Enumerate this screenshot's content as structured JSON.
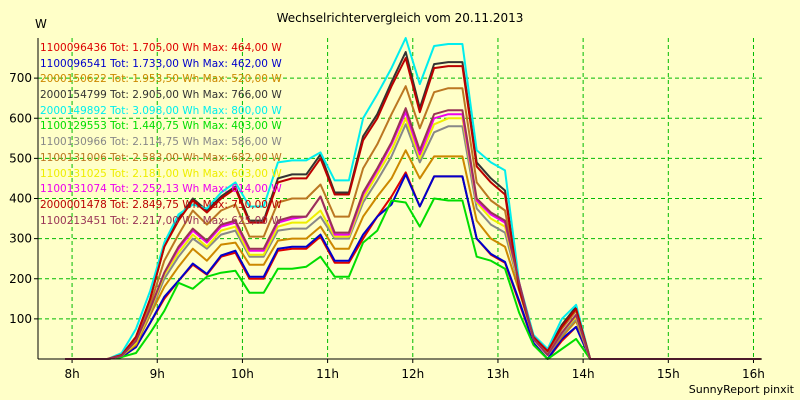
{
  "chart_data": {
    "type": "line",
    "title": "Wechselrichtervergleich vom 20.11.2013",
    "ylabel": "W",
    "xlabel": "",
    "footer": "SunnyReport pinxit",
    "grid": true,
    "xlim": [
      7.6,
      16.1
    ],
    "ylim": [
      0,
      800
    ],
    "x_tick_values": [
      8,
      9,
      10,
      11,
      12,
      13,
      14,
      15,
      16
    ],
    "x_tick_labels": [
      "8h",
      "9h",
      "10h",
      "11h",
      "12h",
      "13h",
      "14h",
      "15h",
      "16h"
    ],
    "y_tick_values": [
      100,
      200,
      300,
      400,
      500,
      600,
      700
    ],
    "y_tick_labels": [
      "100",
      "200",
      "300",
      "400",
      "500",
      "600",
      "700"
    ],
    "x": [
      7.917,
      8.083,
      8.25,
      8.417,
      8.583,
      8.75,
      8.917,
      9.083,
      9.25,
      9.417,
      9.583,
      9.75,
      9.917,
      10.083,
      10.25,
      10.417,
      10.583,
      10.75,
      10.917,
      11.083,
      11.25,
      11.417,
      11.583,
      11.75,
      11.917,
      12.083,
      12.25,
      12.417,
      12.583,
      12.75,
      12.917,
      13.083,
      13.25,
      13.417,
      13.583,
      13.75,
      13.917,
      14.083,
      14.25,
      14.417,
      14.583,
      14.75,
      14.917,
      15.083,
      15.25,
      15.417,
      15.583,
      15.75,
      15.917,
      16.083
    ],
    "series": [
      {
        "name": "1100096436 Tot: 1.705,00 Wh Max: 464,00 W",
        "color": "#dd0000",
        "values": [
          0,
          0,
          0,
          0,
          5,
          30,
          90,
          150,
          195,
          235,
          210,
          255,
          265,
          200,
          200,
          270,
          275,
          275,
          305,
          240,
          240,
          300,
          355,
          405,
          465,
          380,
          455,
          455,
          455,
          300,
          260,
          240,
          140,
          40,
          0,
          45,
          80,
          0,
          0,
          0,
          0,
          0,
          0,
          0,
          0,
          0,
          0,
          0,
          0,
          0
        ]
      },
      {
        "name": "1100096541 Tot: 1.733,00 Wh Max: 462,00 W",
        "color": "#0000cc",
        "values": [
          0,
          0,
          0,
          0,
          5,
          30,
          90,
          155,
          195,
          238,
          212,
          258,
          270,
          205,
          205,
          275,
          280,
          280,
          310,
          245,
          245,
          310,
          355,
          385,
          460,
          380,
          455,
          455,
          455,
          300,
          262,
          242,
          145,
          40,
          0,
          50,
          80,
          0,
          0,
          0,
          0,
          0,
          0,
          0,
          0,
          0,
          0,
          0,
          0,
          0
        ]
      },
      {
        "name": "2000150622 Tot: 1.953,50 Wh Max: 520,00 W",
        "color": "#cc8800",
        "values": [
          0,
          0,
          0,
          0,
          8,
          35,
          110,
          180,
          230,
          275,
          245,
          285,
          290,
          235,
          235,
          295,
          300,
          300,
          330,
          275,
          275,
          355,
          405,
          450,
          520,
          450,
          505,
          505,
          505,
          345,
          300,
          280,
          170,
          50,
          10,
          55,
          95,
          0,
          0,
          0,
          0,
          0,
          0,
          0,
          0,
          0,
          0,
          0,
          0,
          0
        ]
      },
      {
        "name": "2000154799 Tot: 2.905,00 Wh Max: 766,00 W",
        "color": "#333333",
        "values": [
          0,
          0,
          0,
          0,
          10,
          55,
          150,
          280,
          350,
          400,
          370,
          405,
          430,
          345,
          345,
          450,
          460,
          460,
          510,
          415,
          415,
          555,
          610,
          690,
          765,
          625,
          735,
          740,
          740,
          490,
          450,
          420,
          175,
          55,
          20,
          85,
          130,
          0,
          0,
          0,
          0,
          0,
          0,
          0,
          0,
          0,
          0,
          0,
          0,
          0
        ]
      },
      {
        "name": "2000149892 Tot: 3.098,00 Wh Max: 800,00 W",
        "color": "#00eeee",
        "values": [
          0,
          0,
          0,
          0,
          15,
          75,
          170,
          290,
          360,
          385,
          375,
          415,
          440,
          380,
          380,
          490,
          495,
          495,
          515,
          445,
          445,
          600,
          660,
          725,
          800,
          685,
          780,
          785,
          785,
          520,
          490,
          470,
          190,
          60,
          25,
          100,
          135,
          0,
          0,
          0,
          0,
          0,
          0,
          0,
          0,
          0,
          0,
          0,
          0,
          0
        ]
      },
      {
        "name": "1100129553 Tot: 1.440,75 Wh Max: 403,00 W",
        "color": "#00dd00",
        "values": [
          0,
          0,
          0,
          0,
          5,
          15,
          65,
          120,
          190,
          175,
          205,
          215,
          220,
          165,
          165,
          225,
          225,
          230,
          255,
          205,
          205,
          290,
          320,
          395,
          390,
          330,
          400,
          395,
          395,
          255,
          245,
          225,
          115,
          35,
          0,
          25,
          50,
          0,
          0,
          0,
          0,
          0,
          0,
          0,
          0,
          0,
          0,
          0,
          0,
          0
        ]
      },
      {
        "name": "1100130966 Tot: 2.114,75 Wh Max: 586,00 W",
        "color": "#888888",
        "values": [
          0,
          0,
          0,
          0,
          8,
          40,
          115,
          200,
          255,
          300,
          275,
          310,
          320,
          255,
          255,
          320,
          325,
          325,
          355,
          300,
          300,
          390,
          445,
          505,
          585,
          490,
          565,
          580,
          580,
          375,
          335,
          315,
          180,
          50,
          10,
          60,
          100,
          0,
          0,
          0,
          0,
          0,
          0,
          0,
          0,
          0,
          0,
          0,
          0,
          0
        ]
      },
      {
        "name": "1100131006 Tot: 2.583,00 Wh Max: 682,00 W",
        "color": "#bb7722",
        "values": [
          0,
          0,
          0,
          0,
          10,
          50,
          135,
          245,
          310,
          370,
          335,
          370,
          385,
          305,
          305,
          390,
          400,
          400,
          435,
          355,
          355,
          475,
          535,
          610,
          680,
          575,
          665,
          675,
          675,
          440,
          395,
          370,
          180,
          55,
          15,
          75,
          120,
          0,
          0,
          0,
          0,
          0,
          0,
          0,
          0,
          0,
          0,
          0,
          0,
          0
        ]
      },
      {
        "name": "1100131025 Tot: 2.181,00 Wh Max: 603,00 W",
        "color": "#eeee00",
        "values": [
          0,
          0,
          0,
          0,
          8,
          40,
          120,
          210,
          265,
          310,
          280,
          320,
          330,
          260,
          260,
          330,
          340,
          340,
          370,
          305,
          305,
          400,
          460,
          520,
          600,
          500,
          585,
          600,
          600,
          390,
          350,
          330,
          185,
          50,
          10,
          65,
          105,
          0,
          0,
          0,
          0,
          0,
          0,
          0,
          0,
          0,
          0,
          0,
          0,
          0
        ]
      },
      {
        "name": "1100131074 Tot: 2.252,13 Wh Max: 614,00 W",
        "color": "#ee00ee",
        "values": [
          0,
          0,
          0,
          0,
          8,
          45,
          125,
          215,
          275,
          320,
          290,
          330,
          340,
          270,
          270,
          340,
          350,
          355,
          405,
          310,
          310,
          410,
          470,
          535,
          615,
          510,
          600,
          610,
          610,
          395,
          360,
          340,
          190,
          50,
          10,
          65,
          110,
          0,
          0,
          0,
          0,
          0,
          0,
          0,
          0,
          0,
          0,
          0,
          0,
          0
        ]
      },
      {
        "name": "2000001478 Tot: 2.849,75 Wh Max: 750,00 W",
        "color": "#bb0000",
        "values": [
          0,
          0,
          0,
          0,
          10,
          55,
          150,
          280,
          345,
          395,
          365,
          400,
          425,
          340,
          340,
          440,
          450,
          450,
          500,
          410,
          410,
          545,
          600,
          680,
          750,
          615,
          725,
          730,
          730,
          480,
          440,
          410,
          175,
          55,
          20,
          80,
          125,
          0,
          0,
          0,
          0,
          0,
          0,
          0,
          0,
          0,
          0,
          0,
          0,
          0
        ]
      },
      {
        "name": "1100213451 Tot: 2.217,00 Wh Max: 625,00 W",
        "color": "#993355",
        "values": [
          0,
          0,
          0,
          0,
          8,
          45,
          125,
          215,
          280,
          325,
          295,
          335,
          345,
          275,
          275,
          345,
          355,
          355,
          405,
          315,
          315,
          415,
          475,
          540,
          625,
          520,
          610,
          620,
          620,
          400,
          365,
          345,
          190,
          50,
          10,
          65,
          110,
          0,
          0,
          0,
          0,
          0,
          0,
          0,
          0,
          0,
          0,
          0,
          0,
          0
        ]
      }
    ]
  }
}
